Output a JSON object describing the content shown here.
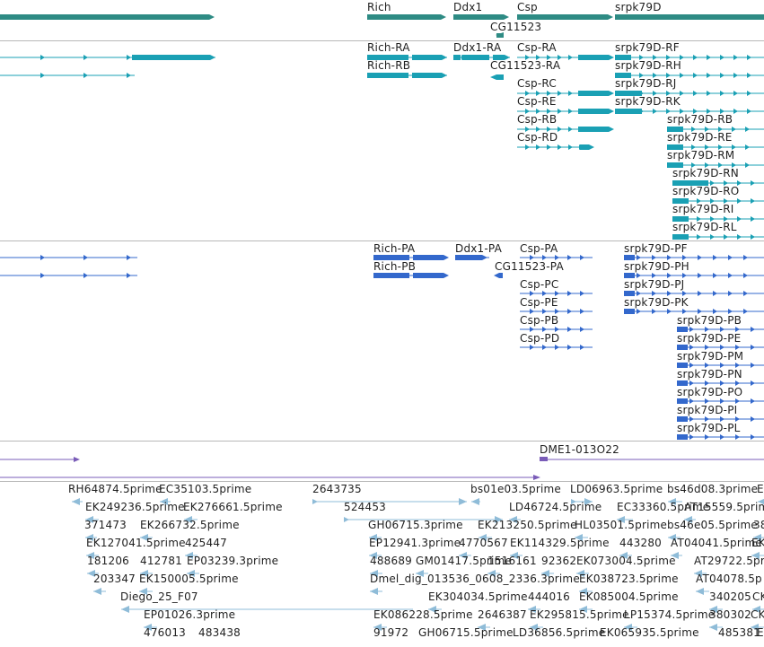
{
  "colors": {
    "gene": "#2e8b84",
    "transcript": "#1aa0b4",
    "cds": "#3368cc",
    "insertion": "#7a5cb8",
    "est": "#8fbcd8",
    "separator": "#b8b8b8"
  },
  "tracks": {
    "genes": {
      "labels": [
        "Rich",
        "Ddx1",
        "Csp",
        "CG11523",
        "srpk79D"
      ]
    },
    "transcripts": {
      "labels": [
        "Rich-RA",
        "Rich-RB",
        "Ddx1-RA",
        "Csp-RA",
        "CG11523-RA",
        "Csp-RC",
        "Csp-RE",
        "Csp-RB",
        "Csp-RD",
        "srpk79D-RF",
        "srpk79D-RH",
        "srpk79D-RJ",
        "srpk79D-RK",
        "srpk79D-RB",
        "srpk79D-RE",
        "srpk79D-RM",
        "srpk79D-RN",
        "srpk79D-RO",
        "srpk79D-RI",
        "srpk79D-RL"
      ]
    },
    "proteins": {
      "labels": [
        "Rich-PA",
        "Rich-PB",
        "Ddx1-PA",
        "Csp-PA",
        "CG11523-PA",
        "Csp-PC",
        "Csp-PE",
        "Csp-PB",
        "Csp-PD",
        "srpk79D-PF",
        "srpk79D-PH",
        "srpk79D-PJ",
        "srpk79D-PK",
        "srpk79D-PB",
        "srpk79D-PE",
        "srpk79D-PM",
        "srpk79D-PN",
        "srpk79D-PO",
        "srpk79D-PI",
        "srpk79D-PL"
      ]
    },
    "insertions": {
      "labels": [
        "DME1-013O22"
      ]
    },
    "ests": {
      "labels": [
        "RH64874.5prime",
        "EC35103.5prime",
        "2643735",
        "bs01e03.5prime",
        "LD06963.5prime",
        "bs46d08.3prime",
        "E",
        "EK249236.5prime",
        "EK276661.5prime",
        "524453",
        "LD46724.5prime",
        "EC33360.5prime",
        "AT15559.5prime",
        "371473",
        "EK266732.5prime",
        "GH06715.3prime",
        "EK213250.5prime",
        "HL03501.5prime",
        "bs46e05.5prime",
        "38",
        "EK127041.5prime",
        "425447",
        "EP12941.3prime",
        "4770567",
        "EK114329.5prime",
        "443280",
        "AT04041.5prime",
        "EK",
        "181206",
        "412781",
        "EP03239.3prime",
        "488689",
        "GM01417.5prime",
        "1516161",
        "92362",
        "EK073004.5prime",
        "AT29722.5prime",
        "203347",
        "EK150005.5prime",
        "Dmel_dig_013536_0608_2336.3prime",
        "EK038723.5prime",
        "AT04078.5p",
        "Diego_25_F07",
        "EK304034.5prime",
        "444016",
        "EK085004.5prime",
        "340205",
        "CK",
        "EP01026.3prime",
        "EK086228.5prime",
        "2646387",
        "EK295815.5prime",
        "LP15374.5prime",
        "380302",
        "CK",
        "476013",
        "483438",
        "91972",
        "GH06715.5prime",
        "LD36856.5prime",
        "EK065935.5prime",
        "485381",
        "E"
      ]
    }
  }
}
